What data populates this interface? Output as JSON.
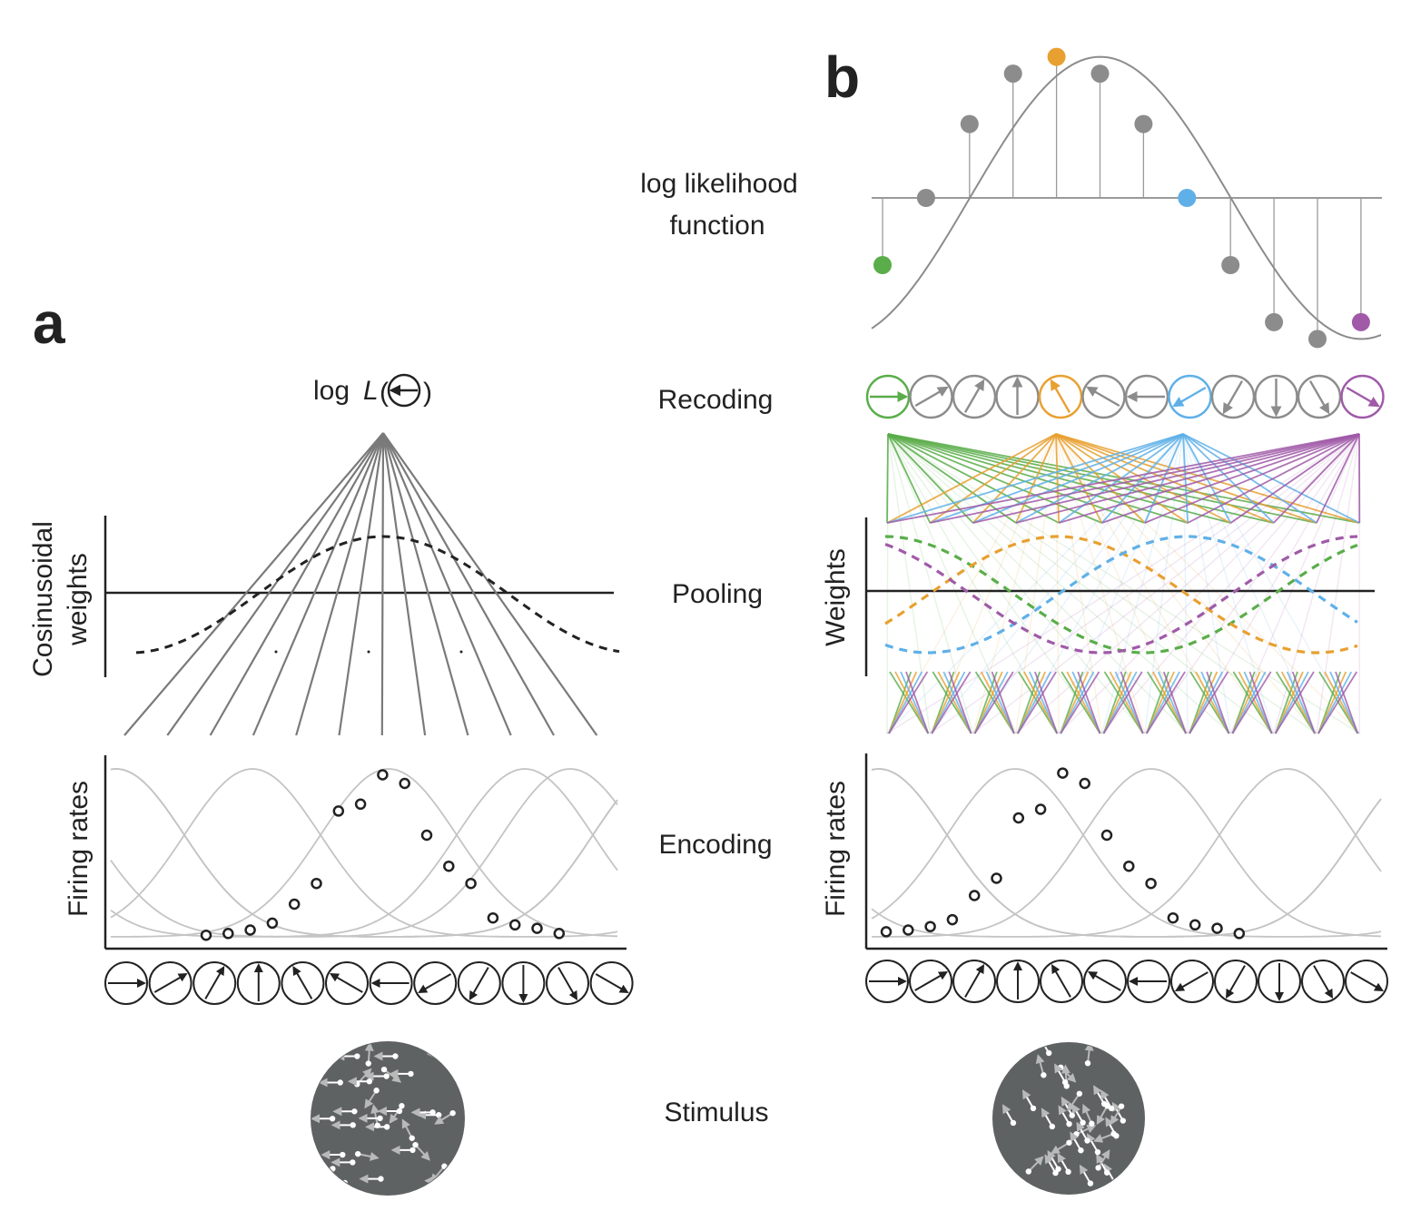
{
  "panel_a": {
    "letter": "a",
    "output_prefix": "log",
    "output_func": "L",
    "y_label_pool_1": "Cosinusoidal",
    "y_label_pool_2": "weights",
    "y_label_enc": "Firing rates",
    "firing_rates": [
      0.02,
      0.03,
      0.05,
      0.09,
      0.2,
      0.32,
      0.74,
      0.78,
      0.95,
      0.9,
      0.6,
      0.42,
      0.32,
      0.12,
      0.08,
      0.06,
      0.03
    ],
    "stimulus_direction": "left"
  },
  "panel_b": {
    "letter": "b",
    "y_label_pool": "Weights",
    "y_label_enc": "Firing rates",
    "firing_rates": [
      0.04,
      0.05,
      0.07,
      0.11,
      0.25,
      0.35,
      0.7,
      0.75,
      0.96,
      0.9,
      0.6,
      0.42,
      0.32,
      0.12,
      0.08,
      0.06,
      0.03
    ],
    "loglik_values": [
      -1.0,
      0.0,
      1.1,
      1.85,
      2.1,
      1.85,
      1.1,
      0.0,
      -1.0,
      -1.85,
      -2.1,
      -1.85
    ],
    "highlight": [
      {
        "index": 0,
        "color": "#5aad4a"
      },
      {
        "index": 4,
        "color": "#e8a030"
      },
      {
        "index": 7,
        "color": "#5fb0e8"
      },
      {
        "index": 11,
        "color": "#a05aa8"
      }
    ],
    "stimulus_direction": "up-left"
  },
  "stages": {
    "loglik_1": "log likelihood",
    "loglik_2": "function",
    "recoding": "Recoding",
    "pooling": "Pooling",
    "encoding": "Encoding",
    "stimulus": "Stimulus"
  },
  "colors": {
    "green": "#5aad4a",
    "orange": "#e8a030",
    "blue": "#5fb0e8",
    "purple": "#a05aa8",
    "gray": "#8c8c8c",
    "dark": "#222222",
    "stim_bg": "#5f6263"
  },
  "directions_deg": [
    0,
    30,
    60,
    90,
    120,
    150,
    180,
    210,
    240,
    270,
    300,
    330
  ]
}
